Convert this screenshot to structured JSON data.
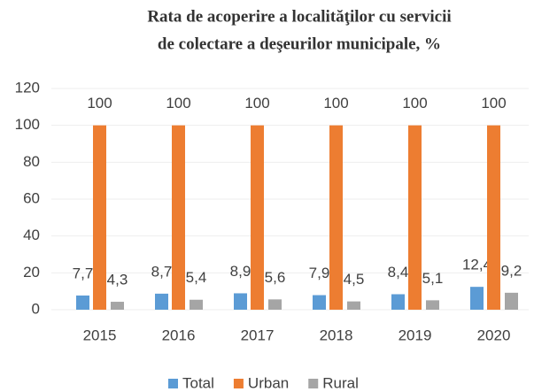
{
  "chart_data": {
    "type": "bar",
    "title": [
      "Rata de acoperire a localităţilor cu servicii",
      "de colectare a deşeurilor municipale, %"
    ],
    "categories": [
      "2015",
      "2016",
      "2017",
      "2018",
      "2019",
      "2020"
    ],
    "series": [
      {
        "name": "Total",
        "color": "#5b9bd5",
        "values": [
          7.7,
          8.7,
          8.9,
          7.9,
          8.4,
          12.4
        ],
        "value_labels": [
          "7,7",
          "8,7",
          "8,9",
          "7,9",
          "8,4",
          "12,4"
        ]
      },
      {
        "name": "Urban",
        "color": "#ed7d31",
        "values": [
          100,
          100,
          100,
          100,
          100,
          100
        ],
        "value_labels": [
          "100",
          "100",
          "100",
          "100",
          "100",
          "100"
        ]
      },
      {
        "name": "Rural",
        "color": "#a5a5a5",
        "values": [
          4.3,
          5.4,
          5.6,
          4.5,
          5.1,
          9.2
        ],
        "value_labels": [
          "4,3",
          "5,4",
          "5,6",
          "4,5",
          "5,1",
          "9,2"
        ]
      }
    ],
    "ylim": [
      0,
      120
    ],
    "yticks": [
      0,
      20,
      40,
      60,
      80,
      100,
      120
    ],
    "grid": true,
    "legend": "bottom"
  }
}
